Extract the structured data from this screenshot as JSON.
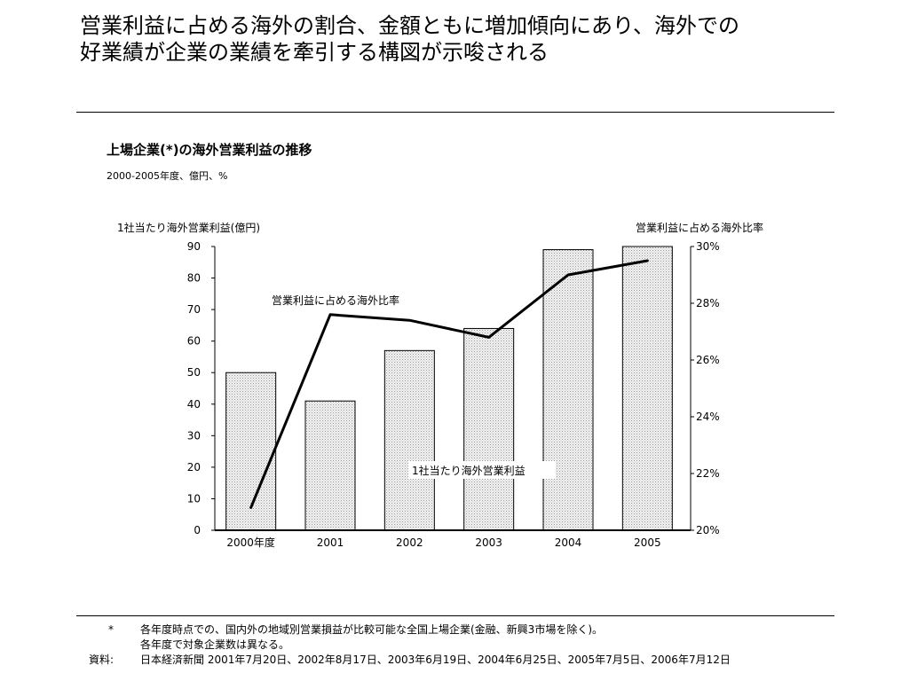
{
  "headline": {
    "line1": "営業利益に占める海外の割合、金額ともに増加傾向にあり、海外での",
    "line2": "好業績が企業の業績を牽引する構図が示唆される"
  },
  "chart_data": {
    "type": "bar",
    "title": "上場企業(*)の海外営業利益の推移",
    "subtitle": "2000-2005年度、億円、%",
    "categories": [
      "2000年度",
      "2001",
      "2002",
      "2003",
      "2004",
      "2005"
    ],
    "left_axis": {
      "title": "1社当たり海外営業利益(億円)",
      "ylim": [
        0,
        90
      ],
      "ticks": [
        "0",
        "10",
        "20",
        "30",
        "40",
        "50",
        "60",
        "70",
        "80",
        "90"
      ]
    },
    "right_axis": {
      "title": "営業利益に占める海外比率",
      "ylim": [
        20,
        30
      ],
      "ticks": [
        "20%",
        "22%",
        "24%",
        "26%",
        "28%",
        "30%"
      ]
    },
    "series": [
      {
        "name": "1社当たり海外営業利益",
        "type": "bar",
        "axis": "left",
        "values": [
          50,
          41,
          57,
          64,
          89,
          90
        ]
      },
      {
        "name": "営業利益に占める海外比率",
        "type": "line",
        "axis": "right",
        "values": [
          20.8,
          27.6,
          27.4,
          26.8,
          29.0,
          29.5
        ]
      }
    ],
    "grid": false,
    "colors": {
      "bar_fill": "#e6e6e6",
      "bar_stroke": "#000000",
      "line": "#000000"
    }
  },
  "notes": {
    "mark": "*",
    "line1": "各年度時点での、国内外の地域別営業損益が比較可能な全国上場企業(金融、新興3市場を除く)。",
    "line2": "各年度で対象企業数は異なる。",
    "source_label": "資料:",
    "source_text": "日本経済新聞 2001年7月20日、2002年8月17日、2003年6月19日、2004年6月25日、2005年7月5日、2006年7月12日"
  }
}
